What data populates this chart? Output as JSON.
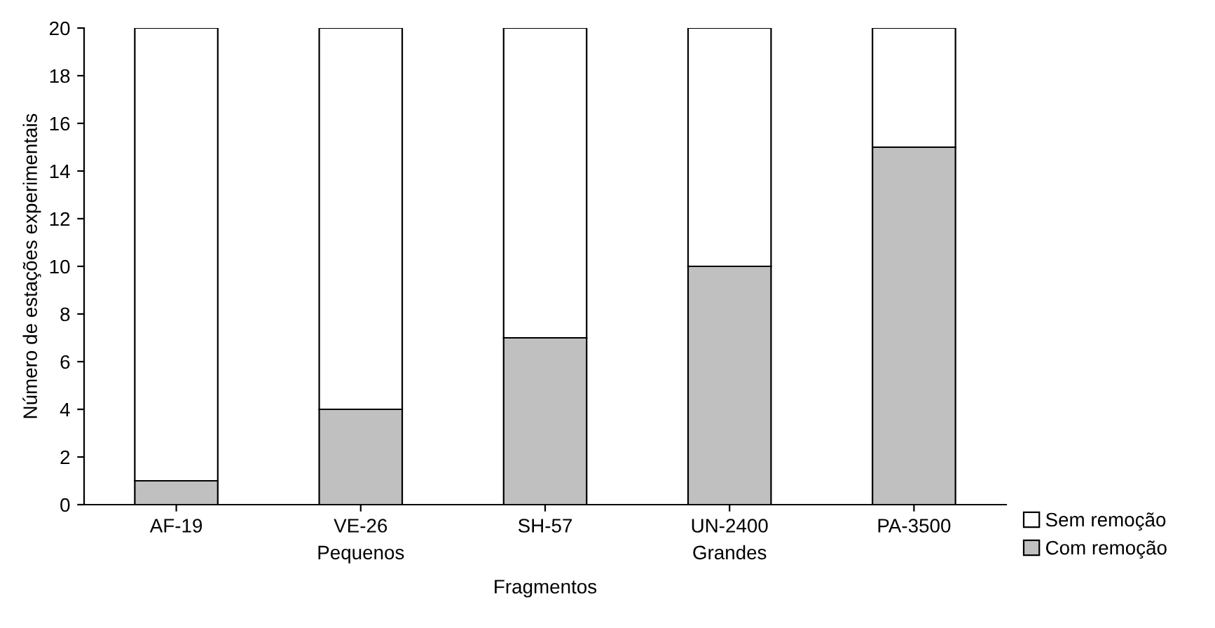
{
  "chart_data": {
    "type": "bar",
    "stacked": true,
    "xlabel": "Fragmentos",
    "ylabel": "Número de estações experimentais",
    "categories": [
      "AF-19",
      "VE-26",
      "SH-57",
      "UN-2400",
      "PA-3500"
    ],
    "series": [
      {
        "name": "Com remoção",
        "color": "#c0c0c0",
        "values": [
          1,
          4,
          7,
          10,
          15
        ]
      },
      {
        "name": "Sem remoção",
        "color": "#ffffff",
        "values": [
          19,
          16,
          13,
          10,
          5
        ]
      }
    ],
    "ylim": [
      0,
      20
    ],
    "yticks": [
      0,
      2,
      4,
      6,
      8,
      10,
      12,
      14,
      16,
      18,
      20
    ],
    "grid": false,
    "legend": "bottom right",
    "annotations": [
      "Pequenos",
      "Grandes"
    ]
  }
}
